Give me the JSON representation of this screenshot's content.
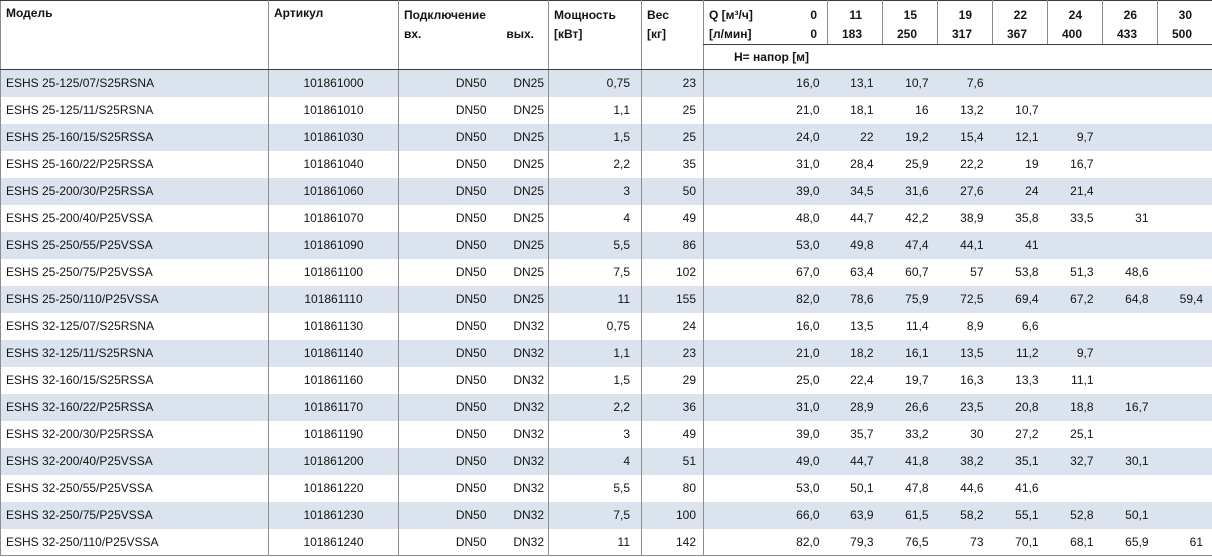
{
  "colors": {
    "header_bg": "#ffffff",
    "row_shaded": "#dbe3ee",
    "border_dark": "#3a3a3a",
    "border_mid": "#8c8c8c",
    "text": "#141414"
  },
  "table": {
    "headers": {
      "model": "Модель",
      "article": "Артикул",
      "connection": "Подключение",
      "inlet": "вх.",
      "outlet": "вых.",
      "power": [
        "Мощность",
        "[кВт]"
      ],
      "weight": [
        "Вес",
        "[кг]"
      ],
      "q_row1": {
        "label": "Q [м³/ч]",
        "value": "0"
      },
      "q_row2": {
        "label": "[л/мин]",
        "value": "0"
      },
      "head_label": "H= напор [м]",
      "flow_columns": [
        {
          "m3h": "11",
          "lmin": "183"
        },
        {
          "m3h": "15",
          "lmin": "250"
        },
        {
          "m3h": "19",
          "lmin": "317"
        },
        {
          "m3h": "22",
          "lmin": "367"
        },
        {
          "m3h": "24",
          "lmin": "400"
        },
        {
          "m3h": "26",
          "lmin": "433"
        },
        {
          "m3h": "30",
          "lmin": "500"
        }
      ]
    },
    "rows": [
      {
        "model": "ESHS 25-125/07/S25RSNA",
        "article": "101861000",
        "inlet": "DN50",
        "outlet": "DN25",
        "power": "0,75",
        "weight": "23",
        "head": [
          "16,0",
          "13,1",
          "10,7",
          "7,6",
          "",
          "",
          "",
          ""
        ]
      },
      {
        "model": "ESHS 25-125/11/S25RSNA",
        "article": "101861010",
        "inlet": "DN50",
        "outlet": "DN25",
        "power": "1,1",
        "weight": "25",
        "head": [
          "21,0",
          "18,1",
          "16",
          "13,2",
          "10,7",
          "",
          "",
          ""
        ]
      },
      {
        "model": "ESHS 25-160/15/S25RSSA",
        "article": "101861030",
        "inlet": "DN50",
        "outlet": "DN25",
        "power": "1,5",
        "weight": "25",
        "head": [
          "24,0",
          "22",
          "19,2",
          "15,4",
          "12,1",
          "9,7",
          "",
          ""
        ]
      },
      {
        "model": "ESHS 25-160/22/P25RSSA",
        "article": "101861040",
        "inlet": "DN50",
        "outlet": "DN25",
        "power": "2,2",
        "weight": "35",
        "head": [
          "31,0",
          "28,4",
          "25,9",
          "22,2",
          "19",
          "16,7",
          "",
          ""
        ]
      },
      {
        "model": "ESHS 25-200/30/P25RSSA",
        "article": "101861060",
        "inlet": "DN50",
        "outlet": "DN25",
        "power": "3",
        "weight": "50",
        "head": [
          "39,0",
          "34,5",
          "31,6",
          "27,6",
          "24",
          "21,4",
          "",
          ""
        ]
      },
      {
        "model": "ESHS 25-200/40/P25VSSA",
        "article": "101861070",
        "inlet": "DN50",
        "outlet": "DN25",
        "power": "4",
        "weight": "49",
        "head": [
          "48,0",
          "44,7",
          "42,2",
          "38,9",
          "35,8",
          "33,5",
          "31",
          ""
        ]
      },
      {
        "model": "ESHS 25-250/55/P25VSSA",
        "article": "101861090",
        "inlet": "DN50",
        "outlet": "DN25",
        "power": "5,5",
        "weight": "86",
        "head": [
          "53,0",
          "49,8",
          "47,4",
          "44,1",
          "41",
          "",
          "",
          ""
        ]
      },
      {
        "model": "ESHS 25-250/75/P25VSSA",
        "article": "101861100",
        "inlet": "DN50",
        "outlet": "DN25",
        "power": "7,5",
        "weight": "102",
        "head": [
          "67,0",
          "63,4",
          "60,7",
          "57",
          "53,8",
          "51,3",
          "48,6",
          ""
        ]
      },
      {
        "model": "ESHS 25-250/110/P25VSSA",
        "article": "101861110",
        "inlet": "DN50",
        "outlet": "DN25",
        "power": "11",
        "weight": "155",
        "head": [
          "82,0",
          "78,6",
          "75,9",
          "72,5",
          "69,4",
          "67,2",
          "64,8",
          "59,4"
        ]
      },
      {
        "model": "ESHS 32-125/07/S25RSNA",
        "article": "101861130",
        "inlet": "DN50",
        "outlet": "DN32",
        "power": "0,75",
        "weight": "24",
        "head": [
          "16,0",
          "13,5",
          "11,4",
          "8,9",
          "6,6",
          "",
          "",
          ""
        ]
      },
      {
        "model": "ESHS 32-125/11/S25RSNA",
        "article": "101861140",
        "inlet": "DN50",
        "outlet": "DN32",
        "power": "1,1",
        "weight": "23",
        "head": [
          "21,0",
          "18,2",
          "16,1",
          "13,5",
          "11,2",
          "9,7",
          "",
          ""
        ]
      },
      {
        "model": "ESHS 32-160/15/S25RSSA",
        "article": "101861160",
        "inlet": "DN50",
        "outlet": "DN32",
        "power": "1,5",
        "weight": "29",
        "head": [
          "25,0",
          "22,4",
          "19,7",
          "16,3",
          "13,3",
          "11,1",
          "",
          ""
        ]
      },
      {
        "model": "ESHS 32-160/22/P25RSSA",
        "article": "101861170",
        "inlet": "DN50",
        "outlet": "DN32",
        "power": "2,2",
        "weight": "36",
        "head": [
          "31,0",
          "28,9",
          "26,6",
          "23,5",
          "20,8",
          "18,8",
          "16,7",
          ""
        ]
      },
      {
        "model": "ESHS 32-200/30/P25RSSA",
        "article": "101861190",
        "inlet": "DN50",
        "outlet": "DN32",
        "power": "3",
        "weight": "49",
        "head": [
          "39,0",
          "35,7",
          "33,2",
          "30",
          "27,2",
          "25,1",
          "",
          ""
        ]
      },
      {
        "model": "ESHS 32-200/40/P25VSSA",
        "article": "101861200",
        "inlet": "DN50",
        "outlet": "DN32",
        "power": "4",
        "weight": "51",
        "head": [
          "49,0",
          "44,7",
          "41,8",
          "38,2",
          "35,1",
          "32,7",
          "30,1",
          ""
        ]
      },
      {
        "model": "ESHS 32-250/55/P25VSSA",
        "article": "101861220",
        "inlet": "DN50",
        "outlet": "DN32",
        "power": "5,5",
        "weight": "80",
        "head": [
          "53,0",
          "50,1",
          "47,8",
          "44,6",
          "41,6",
          "",
          "",
          ""
        ]
      },
      {
        "model": "ESHS 32-250/75/P25VSSA",
        "article": "101861230",
        "inlet": "DN50",
        "outlet": "DN32",
        "power": "7,5",
        "weight": "100",
        "head": [
          "66,0",
          "63,9",
          "61,5",
          "58,2",
          "55,1",
          "52,8",
          "50,1",
          ""
        ]
      },
      {
        "model": "ESHS 32-250/110/P25VSSA",
        "article": "101861240",
        "inlet": "DN50",
        "outlet": "DN32",
        "power": "11",
        "weight": "142",
        "head": [
          "82,0",
          "79,3",
          "76,5",
          "73",
          "70,1",
          "68,1",
          "65,9",
          "61"
        ]
      }
    ]
  }
}
